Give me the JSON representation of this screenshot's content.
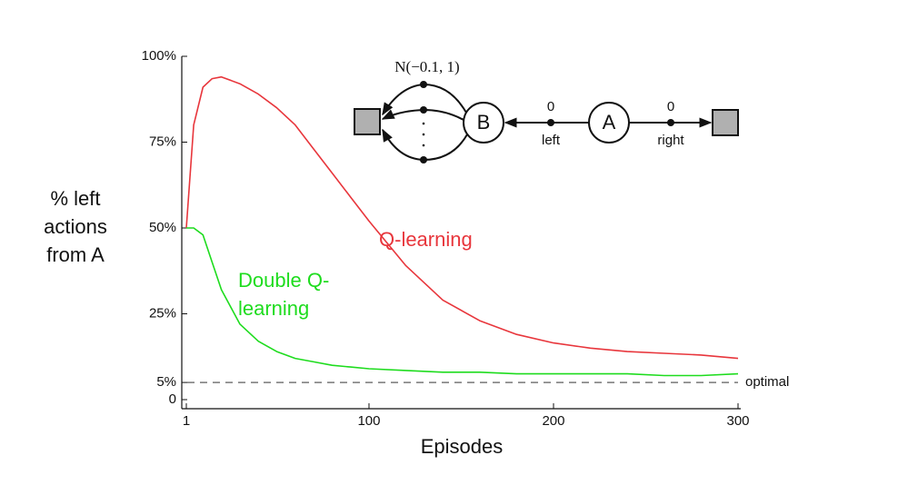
{
  "chart_data": {
    "type": "line",
    "xlabel": "Episodes",
    "ylabel": "% left actions from A",
    "x": [
      1,
      5,
      10,
      15,
      20,
      30,
      40,
      50,
      60,
      70,
      80,
      90,
      100,
      120,
      140,
      160,
      180,
      200,
      220,
      240,
      260,
      280,
      300
    ],
    "series": [
      {
        "name": "Q-learning",
        "color": "#e8363c",
        "values": [
          50,
          80,
          91,
          93.5,
          94,
          92,
          89,
          85,
          80,
          73,
          66,
          59,
          52,
          39,
          29,
          23,
          19,
          16.5,
          15,
          14,
          13.5,
          13,
          12
        ]
      },
      {
        "name": "Double Q-learning",
        "color": "#1edc1e",
        "values": [
          50,
          50,
          48,
          40,
          32,
          22,
          17,
          14,
          12,
          11,
          10,
          9.5,
          9,
          8.5,
          8,
          8,
          7.5,
          7.5,
          7.5,
          7.5,
          7,
          7,
          7.5
        ]
      }
    ],
    "xlim": [
      1,
      300
    ],
    "xticks": [
      1,
      100,
      200,
      300
    ],
    "ylim": [
      0,
      100
    ],
    "yticks": [
      0,
      {
        "value": 5,
        "label": "5%"
      },
      {
        "value": 25,
        "label": "25%"
      },
      {
        "value": 50,
        "label": "50%"
      },
      {
        "value": 75,
        "label": "75%"
      },
      {
        "value": 100,
        "label": "100%"
      }
    ],
    "reference_line": {
      "value": 5,
      "label": "optimal"
    }
  },
  "diagram": {
    "noise": "N(−0.1, 1)",
    "state_b": "B",
    "state_a": "A",
    "left_reward": "0",
    "right_reward": "0",
    "left_action": "left",
    "right_action": "right"
  }
}
